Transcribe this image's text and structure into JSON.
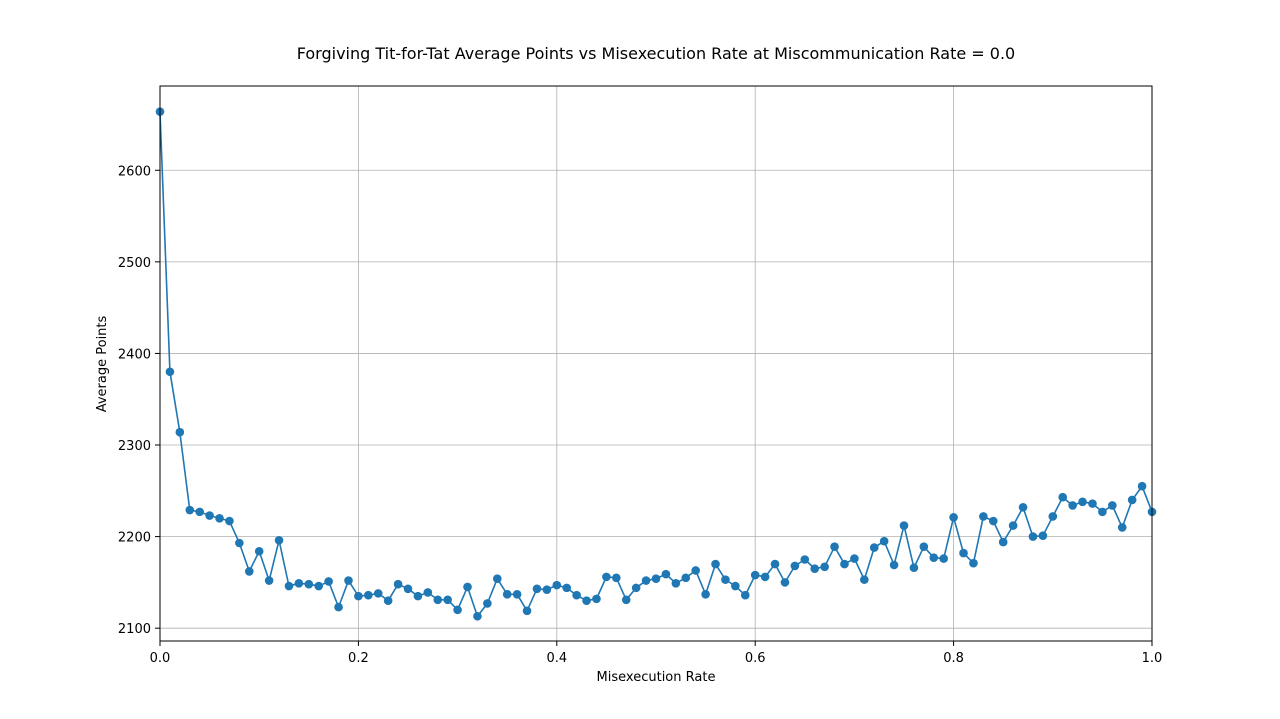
{
  "chart_data": {
    "type": "line",
    "title": "Forgiving Tit-for-Tat Average Points vs Misexecution Rate at Miscommunication Rate = 0.0",
    "xlabel": "Misexecution Rate",
    "ylabel": "Average Points",
    "xlim": [
      0.0,
      1.0
    ],
    "ylim": [
      2086,
      2692
    ],
    "xticks": [
      0.0,
      0.2,
      0.4,
      0.6,
      0.8,
      1.0
    ],
    "xtick_labels": [
      "0.0",
      "0.2",
      "0.4",
      "0.6",
      "0.8",
      "1.0"
    ],
    "yticks": [
      2100,
      2200,
      2300,
      2400,
      2500,
      2600
    ],
    "ytick_labels": [
      "2100",
      "2200",
      "2300",
      "2400",
      "2500",
      "2600"
    ],
    "grid": true,
    "color": "#1f77b4",
    "marker": "circle",
    "series": [
      {
        "x": [
          0.0,
          0.01,
          0.02,
          0.03,
          0.04,
          0.05,
          0.06,
          0.07,
          0.08,
          0.09,
          0.1,
          0.11,
          0.12,
          0.13,
          0.14,
          0.15,
          0.16,
          0.17,
          0.18,
          0.19,
          0.2,
          0.21,
          0.22,
          0.23,
          0.24,
          0.25,
          0.26,
          0.27,
          0.28,
          0.29,
          0.3,
          0.31,
          0.32,
          0.33,
          0.34,
          0.35,
          0.36,
          0.37,
          0.38,
          0.39,
          0.4,
          0.41,
          0.42,
          0.43,
          0.44,
          0.45,
          0.46,
          0.47,
          0.48,
          0.49,
          0.5,
          0.51,
          0.52,
          0.53,
          0.54,
          0.55,
          0.56,
          0.57,
          0.58,
          0.59,
          0.6,
          0.61,
          0.62,
          0.63,
          0.64,
          0.65,
          0.66,
          0.67,
          0.68,
          0.69,
          0.7,
          0.71,
          0.72,
          0.73,
          0.74,
          0.75,
          0.76,
          0.77,
          0.78,
          0.79,
          0.8,
          0.81,
          0.82,
          0.83,
          0.84,
          0.85,
          0.86,
          0.87,
          0.88,
          0.89,
          0.9,
          0.91,
          0.92,
          0.93,
          0.94,
          0.95,
          0.96,
          0.97,
          0.98,
          0.99,
          1.0
        ],
        "values": [
          2664,
          2380,
          2314,
          2229,
          2227,
          2223,
          2220,
          2217,
          2193,
          2162,
          2184,
          2152,
          2196,
          2146,
          2149,
          2148,
          2146,
          2151,
          2123,
          2152,
          2135,
          2136,
          2138,
          2130,
          2148,
          2143,
          2135,
          2139,
          2131,
          2131,
          2120,
          2145,
          2113,
          2127,
          2154,
          2137,
          2137,
          2119,
          2143,
          2142,
          2147,
          2144,
          2136,
          2130,
          2132,
          2156,
          2155,
          2131,
          2144,
          2152,
          2154,
          2159,
          2149,
          2155,
          2163,
          2137,
          2170,
          2153,
          2146,
          2136,
          2158,
          2156,
          2170,
          2150,
          2168,
          2175,
          2165,
          2167,
          2189,
          2170,
          2176,
          2153,
          2188,
          2195,
          2169,
          2212,
          2166,
          2189,
          2177,
          2176,
          2221,
          2182,
          2171,
          2222,
          2217,
          2194,
          2212,
          2232,
          2200,
          2201,
          2222,
          2243,
          2234,
          2238,
          2236,
          2227,
          2234,
          2210,
          2240,
          2255,
          2227
        ]
      }
    ]
  }
}
